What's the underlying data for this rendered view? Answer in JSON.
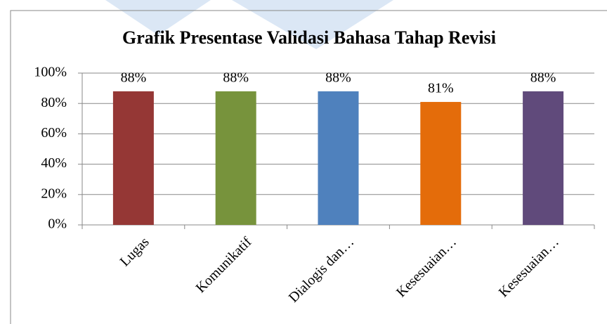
{
  "chart_data": {
    "type": "bar",
    "title": "Grafik Presentase Validasi Bahasa Tahap Revisi",
    "categories": [
      "Lugas",
      "Komunikatif",
      "Dialogis dan…",
      "Kesesuaian…",
      "Kesesuaian…"
    ],
    "values": [
      88,
      88,
      88,
      81,
      88
    ],
    "value_labels": [
      "88%",
      "88%",
      "88%",
      "81%",
      "88%"
    ],
    "colors": [
      "#953735",
      "#77933c",
      "#4f81bd",
      "#e46c0a",
      "#604a7b"
    ],
    "ylim": [
      0,
      100
    ],
    "yticks": [
      {
        "value": 0,
        "label": "0%"
      },
      {
        "value": 20,
        "label": "20%"
      },
      {
        "value": 40,
        "label": "40%"
      },
      {
        "value": 60,
        "label": "60%"
      },
      {
        "value": 80,
        "label": "80%"
      },
      {
        "value": 100,
        "label": "100%"
      }
    ],
    "grid": true
  }
}
